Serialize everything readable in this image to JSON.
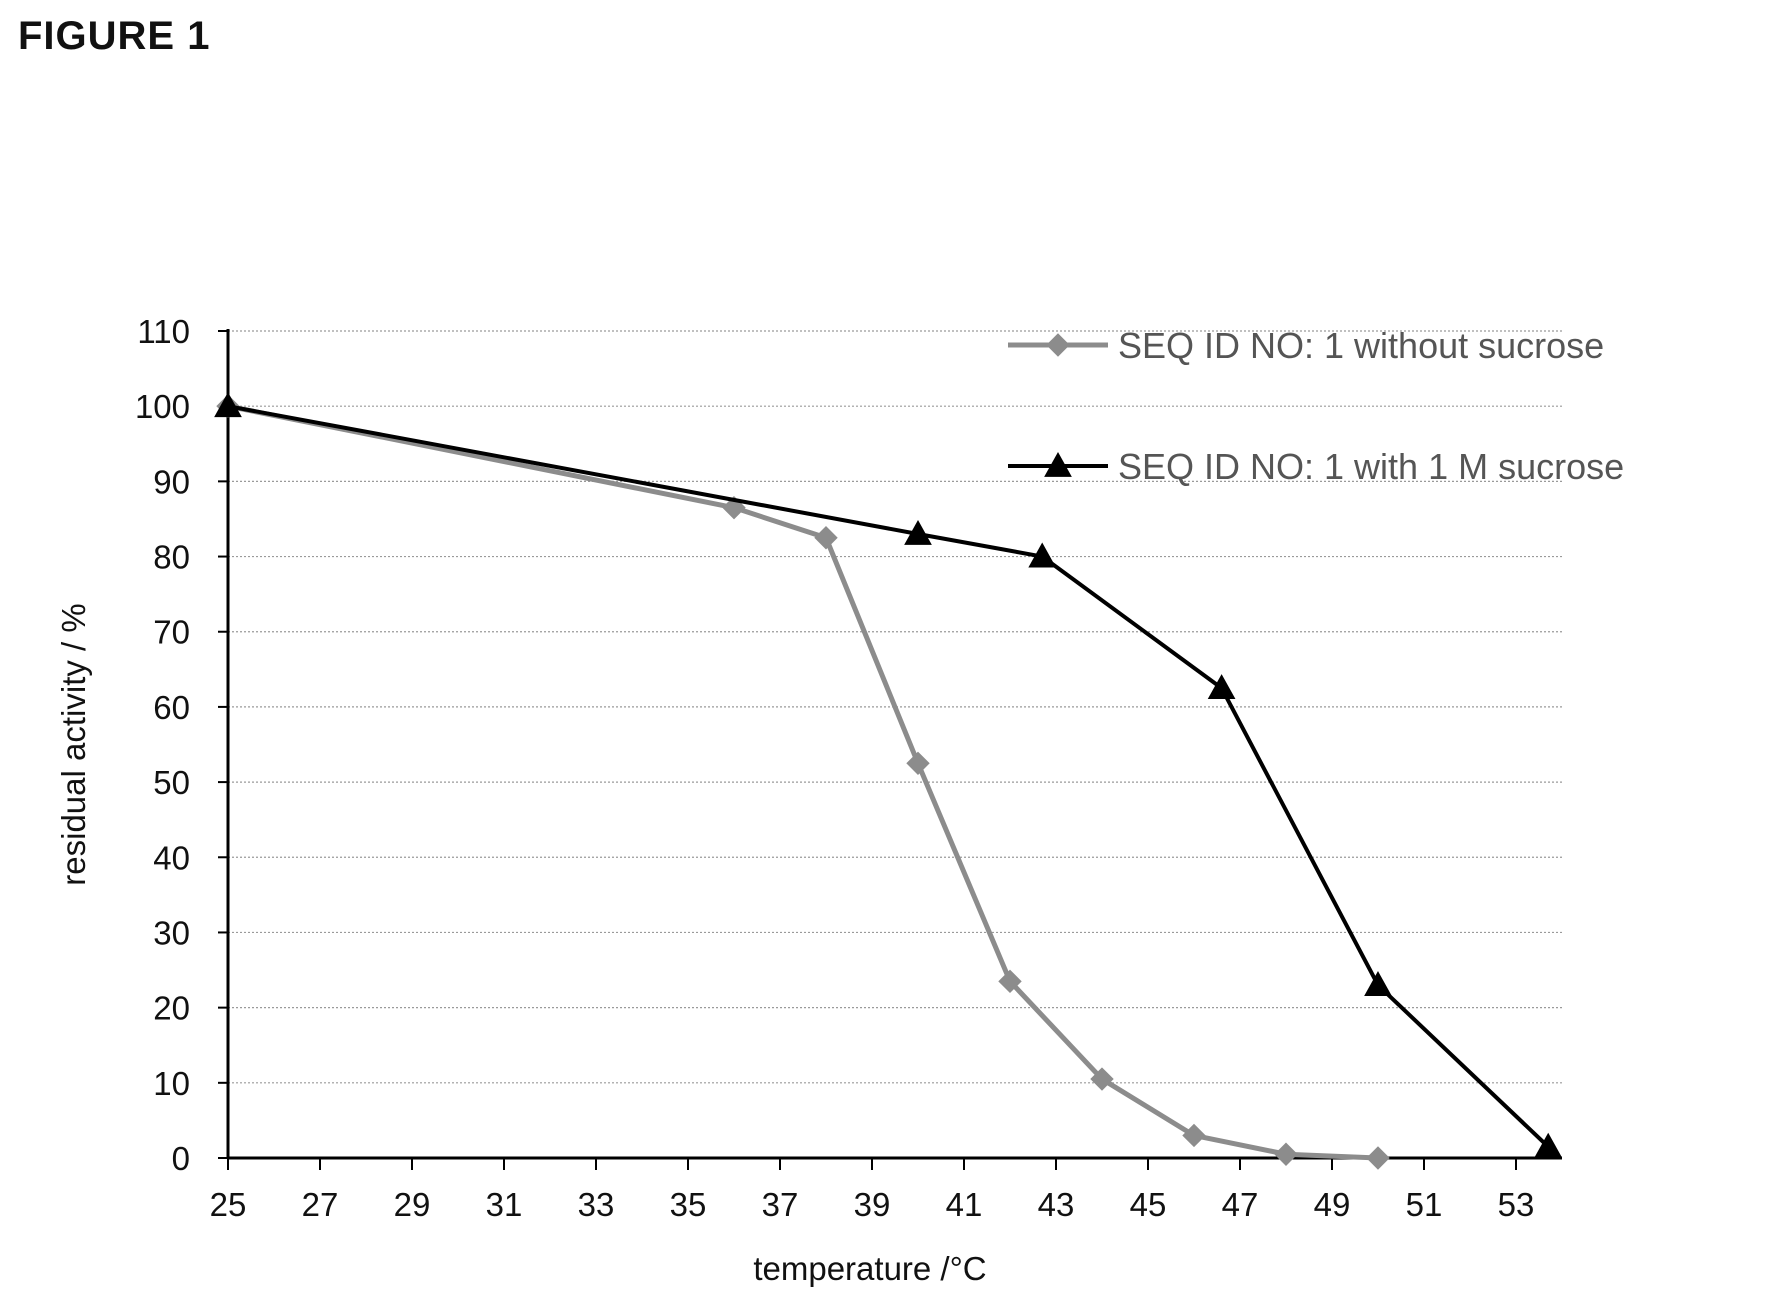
{
  "figure_label": "FIGURE 1",
  "chart_data": {
    "type": "line",
    "xlabel": "temperature /°C",
    "ylabel": "residual activity / %",
    "xlim": [
      25,
      54
    ],
    "ylim": [
      0,
      110
    ],
    "x_ticks": [
      25,
      27,
      29,
      31,
      33,
      35,
      37,
      39,
      41,
      43,
      45,
      47,
      49,
      51,
      53
    ],
    "y_ticks": [
      0,
      10,
      20,
      30,
      40,
      50,
      60,
      70,
      80,
      90,
      100,
      110
    ],
    "grid": "horizontal",
    "legend_position": "top-right",
    "series": [
      {
        "name": "SEQ ID NO: 1 without sucrose",
        "color": "#8c8c8c",
        "marker": "diamond",
        "x": [
          25,
          36,
          38,
          40,
          42,
          44,
          46,
          48,
          50
        ],
        "y": [
          100,
          86.5,
          82.5,
          52.5,
          23.5,
          10.5,
          3,
          0.5,
          0
        ]
      },
      {
        "name": "SEQ ID NO: 1 with 1 M sucrose",
        "color": "#000000",
        "marker": "triangle",
        "x": [
          25,
          40,
          42.7,
          46.6,
          50,
          53.7
        ],
        "y": [
          100,
          83,
          80,
          62.5,
          23,
          1.5
        ]
      }
    ]
  }
}
